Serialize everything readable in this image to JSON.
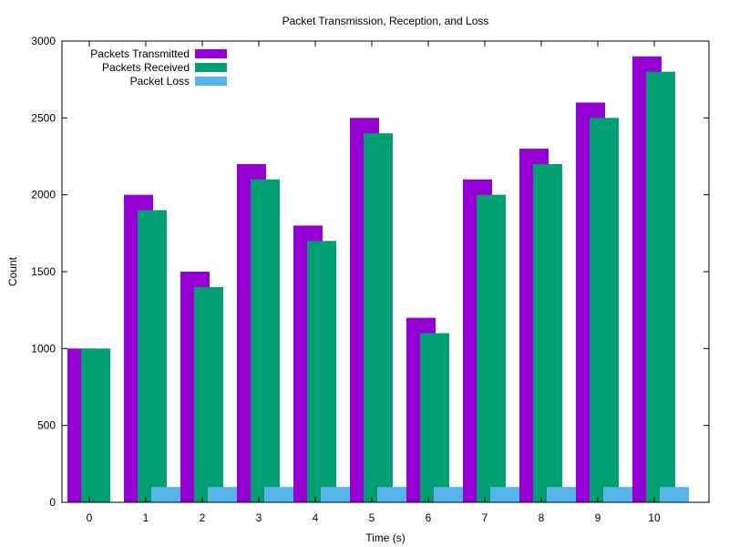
{
  "chart_data": {
    "type": "bar",
    "title": "Packet Transmission, Reception, and Loss",
    "xlabel": "Time (s)",
    "ylabel": "Count",
    "categories": [
      "0",
      "1",
      "2",
      "3",
      "4",
      "5",
      "6",
      "7",
      "8",
      "9",
      "10"
    ],
    "ylim": [
      0,
      3000
    ],
    "yticks": [
      "0",
      "500",
      "1000",
      "1500",
      "2000",
      "2500",
      "3000"
    ],
    "grid": false,
    "legend_position": "top-left",
    "series": [
      {
        "name": "Packets Transmitted",
        "color": "#9400d3",
        "values": [
          1000,
          2000,
          1500,
          2200,
          1800,
          2500,
          1200,
          2100,
          2300,
          2600,
          2900
        ]
      },
      {
        "name": "Packets Received",
        "color": "#009e73",
        "values": [
          1000,
          1900,
          1400,
          2100,
          1700,
          2400,
          1100,
          2000,
          2200,
          2500,
          2800
        ]
      },
      {
        "name": "Packet Loss",
        "color": "#56b4e9",
        "values": [
          0,
          100,
          100,
          100,
          100,
          100,
          100,
          100,
          100,
          100,
          100
        ]
      }
    ]
  }
}
